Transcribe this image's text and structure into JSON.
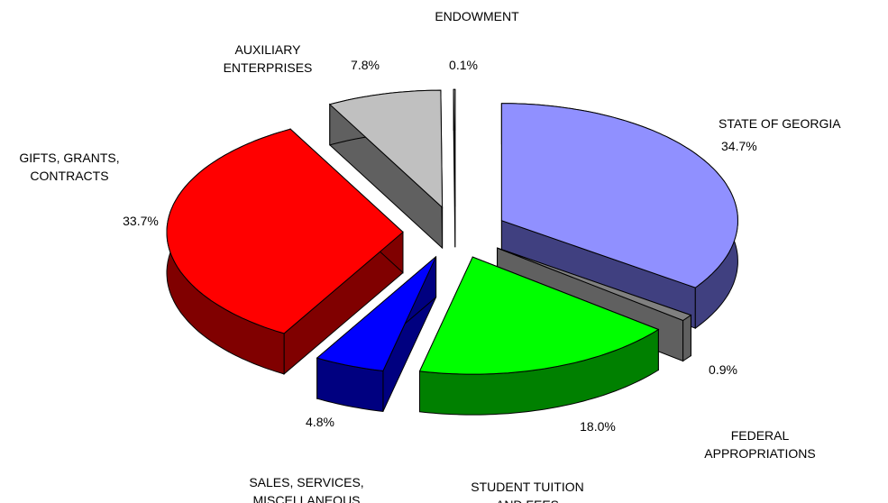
{
  "chart_data": {
    "type": "pie",
    "categories": [
      "STATE OF GEORGIA",
      "FEDERAL\nAPPROPRIATIONS",
      "STUDENT TUITION\nAND FEES",
      "SALES, SERVICES,\nMISCELLANEOUS",
      "GIFTS, GRANTS,\nCONTRACTS",
      "AUXILIARY\nENTERPRISES",
      "ENDOWMENT"
    ],
    "values": [
      34.7,
      0.9,
      18.0,
      4.8,
      33.7,
      7.8,
      0.1
    ],
    "value_labels": [
      "34.7%",
      "0.9%",
      "18.0%",
      "4.8%",
      "33.7%",
      "7.8%",
      "0.1%"
    ],
    "colors": [
      "#9090ff",
      "#808080",
      "#00ff00",
      "#0000ff",
      "#ff0000",
      "#c0c0c0",
      "#ffffff"
    ],
    "side_colors": [
      "#404080",
      "#606060",
      "#008000",
      "#000080",
      "#800000",
      "#606060",
      "#ffffff"
    ]
  }
}
